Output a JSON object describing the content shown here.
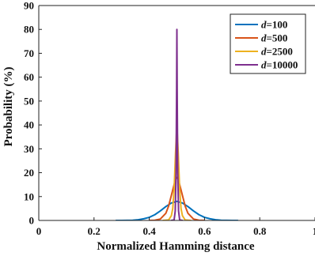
{
  "chart_data": {
    "type": "line",
    "title": "",
    "xlabel": "Normalized Hamming distance",
    "ylabel": "Probability (%)",
    "xlim": [
      0,
      1
    ],
    "ylim": [
      0,
      90
    ],
    "x_ticks": [
      0,
      0.2,
      0.4,
      0.6,
      0.8,
      1
    ],
    "x_tick_labels": [
      "0",
      "0.2",
      "0.4",
      "0.6",
      "0.8",
      "1"
    ],
    "y_ticks": [
      0,
      10,
      20,
      30,
      40,
      50,
      60,
      70,
      80,
      90
    ],
    "y_tick_labels": [
      "0",
      "10",
      "20",
      "30",
      "40",
      "50",
      "60",
      "70",
      "80",
      "90"
    ],
    "grid": false,
    "legend_position": "top-right",
    "legend_var": "d",
    "series": [
      {
        "name": "=100",
        "color": "#0072BD",
        "x": [
          0.28,
          0.3,
          0.32,
          0.34,
          0.36,
          0.38,
          0.4,
          0.42,
          0.44,
          0.46,
          0.48,
          0.5,
          0.52,
          0.54,
          0.56,
          0.58,
          0.6,
          0.62,
          0.64,
          0.66,
          0.68,
          0.7,
          0.72
        ],
        "y": [
          0.0,
          0.02,
          0.04,
          0.1,
          0.3,
          0.7,
          1.3,
          2.4,
          4.0,
          5.8,
          7.3,
          8.0,
          7.3,
          5.8,
          4.0,
          2.4,
          1.3,
          0.7,
          0.3,
          0.1,
          0.04,
          0.02,
          0.0
        ]
      },
      {
        "name": "=500",
        "color": "#D95319",
        "x": [
          0.4,
          0.42,
          0.44,
          0.46,
          0.47,
          0.48,
          0.49,
          0.495,
          0.5,
          0.505,
          0.51,
          0.52,
          0.53,
          0.54,
          0.56,
          0.58,
          0.6
        ],
        "y": [
          0.0,
          0.1,
          0.6,
          3.0,
          6.0,
          10.5,
          15.0,
          17.2,
          18.0,
          17.2,
          15.0,
          10.5,
          6.0,
          3.0,
          0.6,
          0.1,
          0.0
        ]
      },
      {
        "name": "=2500",
        "color": "#EDB120",
        "x": [
          0.45,
          0.47,
          0.48,
          0.485,
          0.49,
          0.495,
          0.5,
          0.505,
          0.51,
          0.515,
          0.52,
          0.53,
          0.55
        ],
        "y": [
          0.0,
          0.2,
          2.0,
          5.0,
          13.0,
          28.0,
          40.0,
          28.0,
          13.0,
          5.0,
          2.0,
          0.2,
          0.0
        ]
      },
      {
        "name": "=10000",
        "color": "#7E2F8E",
        "x": [
          0.48,
          0.49,
          0.494,
          0.497,
          0.499,
          0.5,
          0.501,
          0.503,
          0.506,
          0.51,
          0.52
        ],
        "y": [
          0.0,
          0.2,
          4.0,
          20.0,
          55.0,
          80.0,
          55.0,
          20.0,
          4.0,
          0.2,
          0.0
        ]
      }
    ]
  }
}
